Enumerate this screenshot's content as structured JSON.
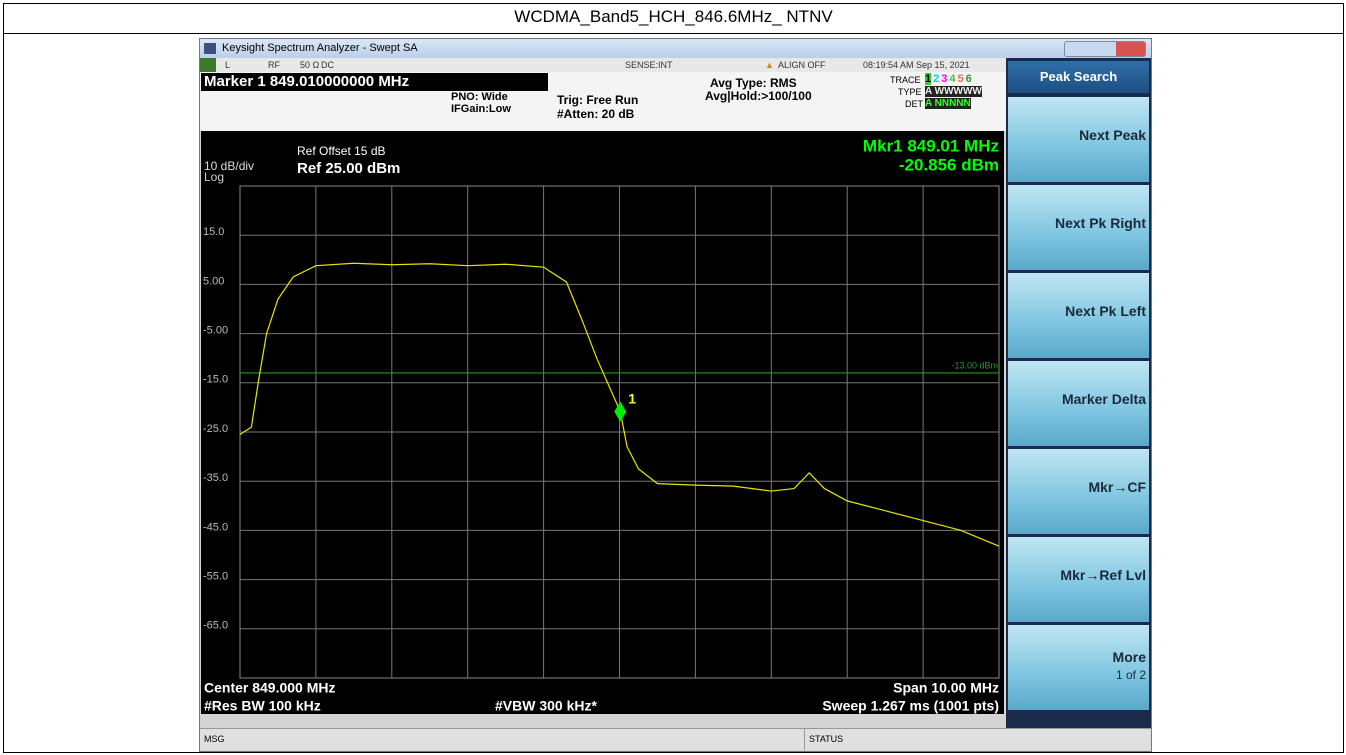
{
  "title": "WCDMA_Band5_HCH_846.6MHz_ NTNV",
  "window": {
    "title": "Keysight Spectrum Analyzer - Swept SA"
  },
  "status_row": {
    "mode": "L",
    "input": "RF",
    "impedance": "50 Ω",
    "coupling": "DC",
    "sense": "SENSE:INT",
    "align": "ALIGN OFF",
    "time": "08:19:54 AM Sep 15, 2021"
  },
  "settings": {
    "marker": "Marker 1 849.010000000 MHz",
    "pno": "PNO: Wide",
    "ifgain": "IFGain:Low",
    "trig": "Trig: Free Run",
    "atten": "#Atten: 20 dB",
    "avg_type": "Avg Type: RMS",
    "avg_hold": "Avg|Hold:>100/100",
    "trace_label": "TRACE",
    "traces": [
      "1",
      "2",
      "3",
      "4",
      "5",
      "6"
    ],
    "type_label": "TYPE",
    "type": "A WWWWW",
    "det_label": "DET",
    "det": "A NNNNN"
  },
  "chart_data": {
    "type": "line",
    "ref_offset": "Ref Offset 15 dB",
    "scale": "10 dB/div",
    "scale_type": "Log",
    "ref_level": "Ref 25.00 dBm",
    "marker_freq": "Mkr1 849.01 MHz",
    "marker_amp": "-20.856 dBm",
    "center": "Center 849.000 MHz",
    "span": "Span 10.00 MHz",
    "rbw": "#Res BW 100 kHz",
    "vbw": "#VBW 300 kHz*",
    "sweep": "Sweep  1.267 ms (1001 pts)",
    "x": [
      844.0,
      844.05,
      844.15,
      844.25,
      844.35,
      844.5,
      844.7,
      845.0,
      845.5,
      846.0,
      846.5,
      847.0,
      847.5,
      848.0,
      848.3,
      848.5,
      848.7,
      848.9,
      849.01,
      849.1,
      849.25,
      849.5,
      850.0,
      850.5,
      851.0,
      851.3,
      851.5,
      851.7,
      852.0,
      852.5,
      853.0,
      853.5,
      854.0
    ],
    "series": [
      {
        "color": "#e6e600",
        "values": [
          -25.5,
          -25,
          -24,
          -14,
          -5,
          2,
          6.5,
          8.8,
          9.3,
          9.0,
          9.2,
          8.8,
          9.1,
          8.5,
          5.5,
          -2,
          -10,
          -17,
          -20.856,
          -28,
          -32.5,
          -35.5,
          -35.8,
          -36,
          -37,
          -36.5,
          -33.3,
          -36.5,
          -39,
          -41,
          -43,
          -45,
          -48.2
        ]
      }
    ],
    "xlim": [
      844,
      854
    ],
    "ylim": [
      -75,
      25
    ],
    "yticks": [
      {
        "value": 15,
        "label": "15.0"
      },
      {
        "value": 5,
        "label": "5.00"
      },
      {
        "value": -5,
        "label": "-5.00"
      },
      {
        "value": -15,
        "label": "-15.0"
      },
      {
        "value": -25,
        "label": "-25.0"
      },
      {
        "value": -35,
        "label": "-35.0"
      },
      {
        "value": -45,
        "label": "-45.0"
      },
      {
        "value": -55,
        "label": "-55.0"
      },
      {
        "value": -65,
        "label": "-65.0"
      }
    ],
    "grid": true,
    "display_line": {
      "value": -13,
      "label": "-13.00 dBm",
      "color": "#1a9e1a"
    },
    "marker": {
      "x": 849.01,
      "value": -20.856,
      "label": "1",
      "color": "#00ee00"
    }
  },
  "softkeys": {
    "title": "Peak Search",
    "keys": [
      {
        "label": "Next Peak"
      },
      {
        "label": "Next Pk Right"
      },
      {
        "label": "Next Pk Left"
      },
      {
        "label": "Marker Delta"
      },
      {
        "label": "Mkr→CF"
      },
      {
        "label": "Mkr→Ref Lvl"
      },
      {
        "label": "More",
        "sub": "1 of 2"
      }
    ]
  },
  "footer": {
    "msg": "MSG",
    "status": "STATUS"
  }
}
